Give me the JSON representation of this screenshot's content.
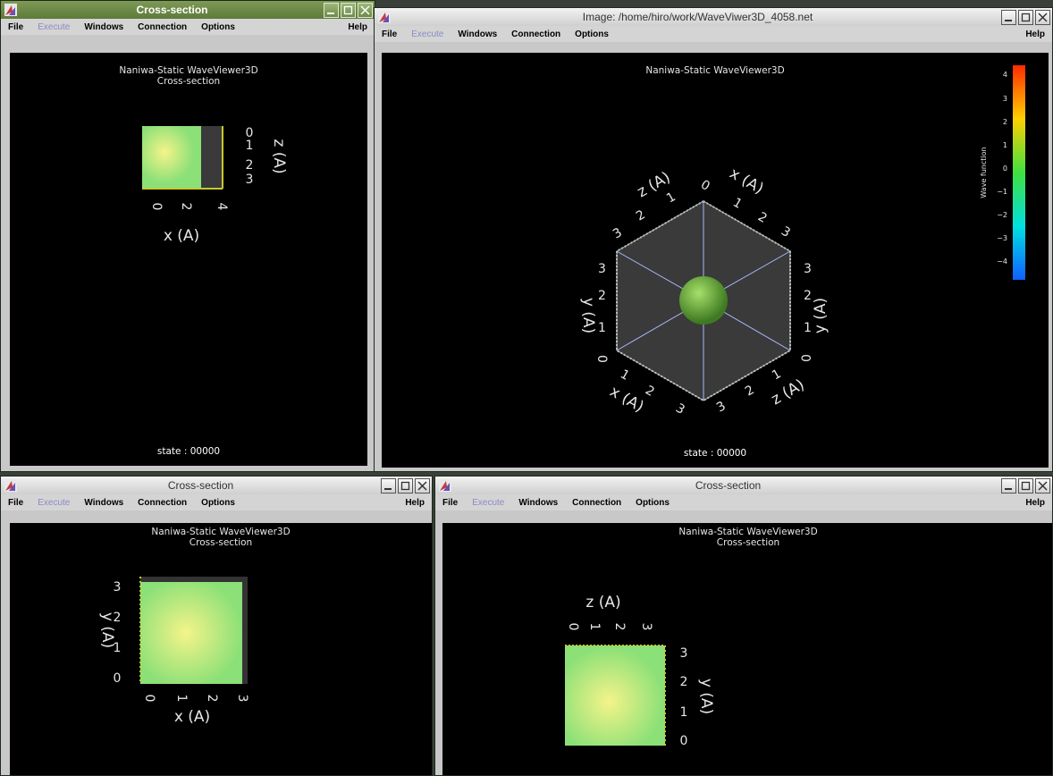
{
  "menu": {
    "file": "File",
    "execute": "Execute",
    "windows": "Windows",
    "connection": "Connection",
    "options": "Options",
    "help": "Help"
  },
  "app": {
    "name": "Naniwa-Static WaveViewer3D",
    "subtitle": "Cross-section",
    "state": "state : 00000"
  },
  "windows": {
    "xz": {
      "title": "Cross-section"
    },
    "image": {
      "title": "Image: /home/hiro/work/WaveViwer3D_4058.net"
    },
    "xy": {
      "title": "Cross-section"
    },
    "zy": {
      "title": "Cross-section"
    }
  },
  "colorbar": {
    "label": "Wave function",
    "ticks": [
      "4",
      "3",
      "2",
      "1",
      "0",
      "−1",
      "−2",
      "−3",
      "−4"
    ]
  },
  "axes": {
    "x": "x (A)",
    "y": "y (A)",
    "z": "z (A)"
  },
  "ticks": {
    "xz_z": [
      "0",
      "1",
      "2",
      "3"
    ],
    "xz_x": [
      "0",
      "2",
      "4"
    ],
    "xy_y": [
      "3",
      "2",
      "1",
      "0"
    ],
    "xy_x": [
      "0",
      "1",
      "2",
      "3"
    ],
    "zy_z": [
      "0",
      "1",
      "2",
      "3"
    ],
    "zy_y": [
      "3",
      "2",
      "1",
      "0"
    ],
    "n0": "0",
    "n1": "1",
    "n2": "2",
    "n3": "3"
  },
  "colors": {
    "green_field": "#8be077",
    "yellow_blob": "#f4f48a",
    "axis_yellow": "#c8c830",
    "title_active": "#6b8a45",
    "menu_disabled": "#8a8ac8"
  }
}
